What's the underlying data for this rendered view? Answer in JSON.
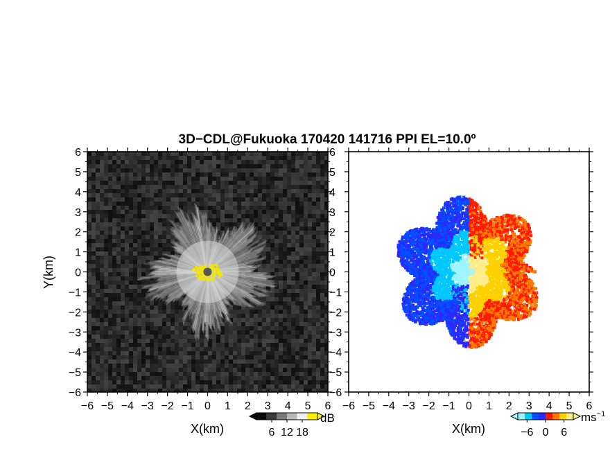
{
  "chart_data": [
    {
      "type": "heatmap",
      "panel": "left",
      "quantity": "SNR",
      "xlabel": "X(km)",
      "ylabel": "Y(km)",
      "xlim": [
        -6,
        6
      ],
      "ylim": [
        -6,
        6
      ],
      "x_ticks": [
        -6,
        -5,
        -4,
        -3,
        -2,
        -1,
        0,
        1,
        2,
        3,
        4,
        5,
        6
      ],
      "y_ticks": [
        -6,
        -5,
        -4,
        -3,
        -2,
        -1,
        0,
        1,
        2,
        3,
        4,
        5,
        6
      ],
      "colorbar": {
        "unit": "dB",
        "ticks": [
          6,
          12,
          18
        ],
        "range": [
          0,
          24
        ],
        "colors": [
          "#0a0a0a",
          "#3a3a3a",
          "#7a7a7a",
          "#b8b8b8",
          "#f0f0f0",
          "#ffee00"
        ]
      },
      "echo_radius_km": 3.3,
      "radar_location": [
        0,
        0
      ]
    },
    {
      "type": "heatmap",
      "panel": "right",
      "quantity": "Doppler velocity",
      "xlabel": "X(km)",
      "xlim": [
        -6,
        6
      ],
      "ylim": [
        -6,
        6
      ],
      "x_ticks": [
        -6,
        -5,
        -4,
        -3,
        -2,
        -1,
        0,
        1,
        2,
        3,
        4,
        5,
        6
      ],
      "y_ticks": [
        -6,
        -5,
        -4,
        -3,
        -2,
        -1,
        0,
        1,
        2,
        3,
        4,
        5,
        6
      ],
      "colorbar": {
        "unit": "ms",
        "unit_exponent": "−1",
        "ticks": [
          -6,
          0,
          6
        ],
        "range": [
          -9,
          9
        ],
        "colors": [
          "#9ff5ff",
          "#00c8ff",
          "#0050ff",
          "#2a2aff",
          "#ff1a00",
          "#ff7a00",
          "#ffd000",
          "#ffee88"
        ]
      },
      "echo_radius_km": 3.3,
      "radar_location": [
        0,
        0
      ]
    }
  ],
  "title": "3D−CDL@Fukuoka 170420 141716 PPI EL=10.0º"
}
